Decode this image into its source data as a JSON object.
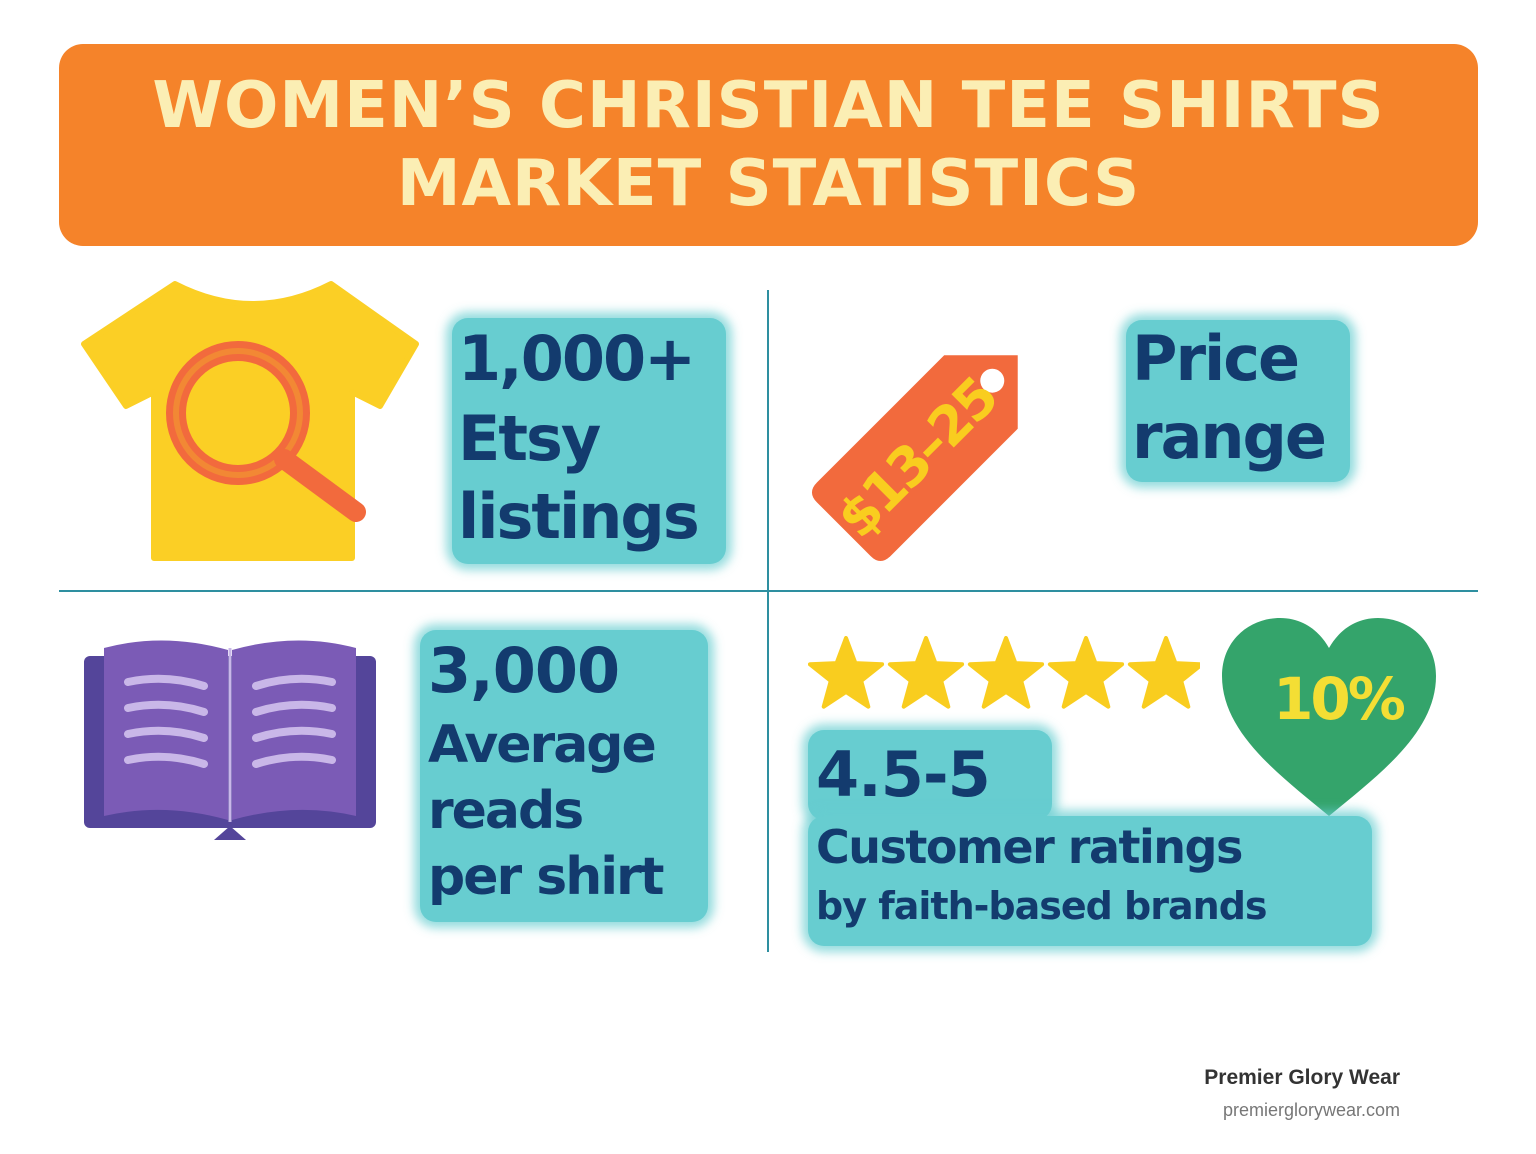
{
  "title": {
    "line1": "WOMEN’S CHRISTIAN TEE SHIRTS",
    "line2": "MARKET STATISTICS"
  },
  "stats": {
    "etsy": {
      "value": "1,000+",
      "label_line1": "Etsy",
      "label_line2": "listings",
      "icon": "tshirt-magnifier-icon"
    },
    "price": {
      "tag_text": "$13–25",
      "label_line1": "Price",
      "label_line2": "range",
      "icon": "price-tag-icon"
    },
    "reads": {
      "value": "3,000",
      "label_line1": "Average",
      "label_line2": "reads",
      "label_line3": "per shirt",
      "icon": "open-book-icon"
    },
    "ratings": {
      "value": "4.5-5",
      "label_line1": "Customer ratings",
      "label_line2": "by faith-based brands",
      "stars": 5,
      "heart_text": "10%",
      "icon": "heart-icon"
    }
  },
  "colors": {
    "banner": "#f5832a",
    "banner_text": "#fbeeb4",
    "highlight": "#67cdd0",
    "stat_text": "#133b6e",
    "divider": "#2e8fa0",
    "shirt": "#fbcf25",
    "tag": "#f26a3d",
    "book": "#7b5bb6",
    "star": "#f9cd1f",
    "heart": "#34a46b"
  },
  "footer": {
    "brand": "Premier Glory Wear",
    "url": "premierglorywear.com"
  }
}
